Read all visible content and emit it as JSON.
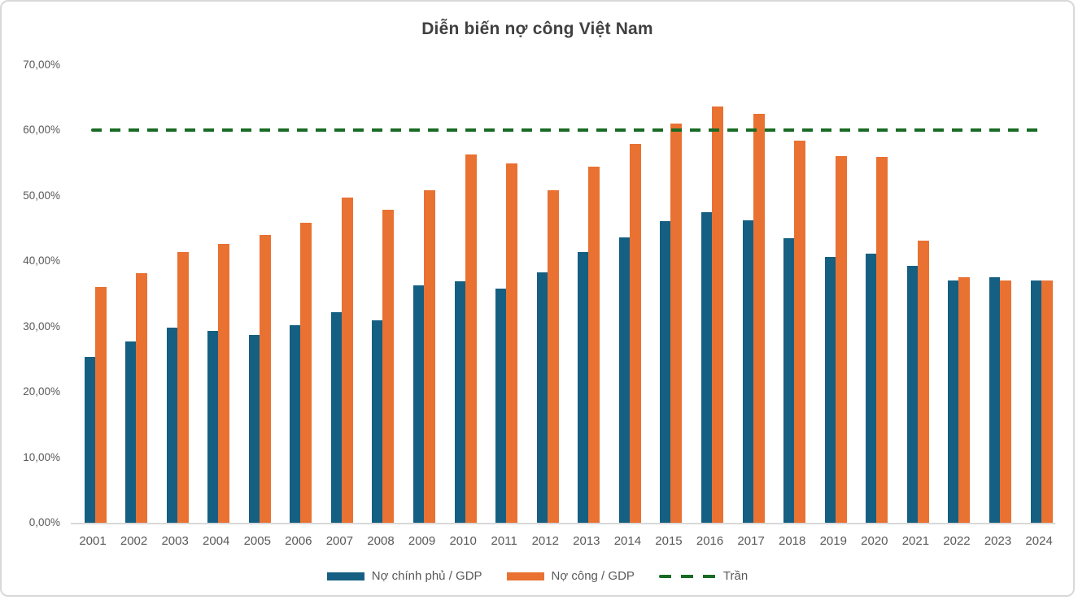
{
  "title": "Diễn biến nợ công Việt Nam",
  "chart_data": {
    "type": "bar",
    "title": "Diễn biến nợ công Việt Nam",
    "categories": [
      "2001",
      "2002",
      "2003",
      "2004",
      "2005",
      "2006",
      "2007",
      "2008",
      "2009",
      "2010",
      "2011",
      "2012",
      "2013",
      "2014",
      "2015",
      "2016",
      "2017",
      "2018",
      "2019",
      "2020",
      "2021",
      "2022",
      "2023",
      "2024"
    ],
    "series": [
      {
        "name": "Nợ chính phủ / GDP",
        "color": "#156082",
        "values": [
          25.4,
          27.7,
          29.8,
          29.4,
          28.7,
          30.2,
          32.2,
          31.0,
          36.3,
          36.9,
          35.8,
          38.3,
          41.4,
          43.6,
          46.1,
          47.5,
          46.2,
          43.5,
          40.7,
          41.2,
          39.3,
          37.0,
          37.6,
          37.1
        ]
      },
      {
        "name": "Nợ công / GDP",
        "color": "#E97132",
        "values": [
          36.0,
          38.2,
          41.4,
          42.6,
          44.0,
          45.9,
          49.7,
          47.9,
          50.9,
          56.3,
          54.9,
          50.8,
          54.4,
          57.9,
          61.0,
          63.6,
          62.5,
          58.4,
          56.1,
          55.9,
          43.1,
          37.5,
          37.0,
          37.0
        ]
      }
    ],
    "reference_line": {
      "name": "Trần",
      "value": 60,
      "color": "#196B24",
      "style": "dashed"
    },
    "xlabel": "",
    "ylabel": "",
    "ylim": [
      0,
      70
    ],
    "ytick_values": [
      0,
      10,
      20,
      30,
      40,
      50,
      60,
      70
    ],
    "ytick_labels": [
      "0,00%",
      "10,00%",
      "20,00%",
      "30,00%",
      "40,00%",
      "50,00%",
      "60,00%",
      "70,00%"
    ],
    "grid": "off",
    "legend_position": "bottom"
  }
}
